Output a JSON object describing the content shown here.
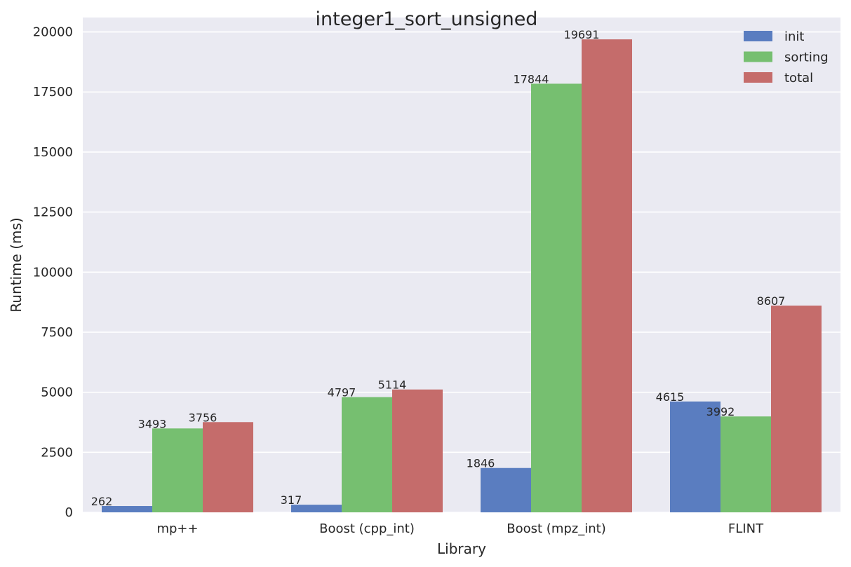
{
  "chart_data": {
    "type": "bar",
    "title": "integer1_sort_unsigned",
    "xlabel": "Library",
    "ylabel": "Runtime (ms)",
    "categories": [
      "mp++",
      "Boost (cpp_int)",
      "Boost (mpz_int)",
      "FLINT"
    ],
    "series": [
      {
        "name": "init",
        "color": "#5a7dc0",
        "values": [
          262,
          317,
          1846,
          4615
        ]
      },
      {
        "name": "sorting",
        "color": "#76bf70",
        "values": [
          3493,
          4797,
          17844,
          3992
        ]
      },
      {
        "name": "total",
        "color": "#c56c6b",
        "values": [
          3756,
          5114,
          19691,
          8607
        ]
      }
    ],
    "ylim": [
      0,
      20600
    ],
    "yticks": [
      0,
      2500,
      5000,
      7500,
      10000,
      12500,
      15000,
      17500,
      20000
    ],
    "grid": true,
    "legend_position": "top-right",
    "background_color": "#eaeaf2"
  }
}
